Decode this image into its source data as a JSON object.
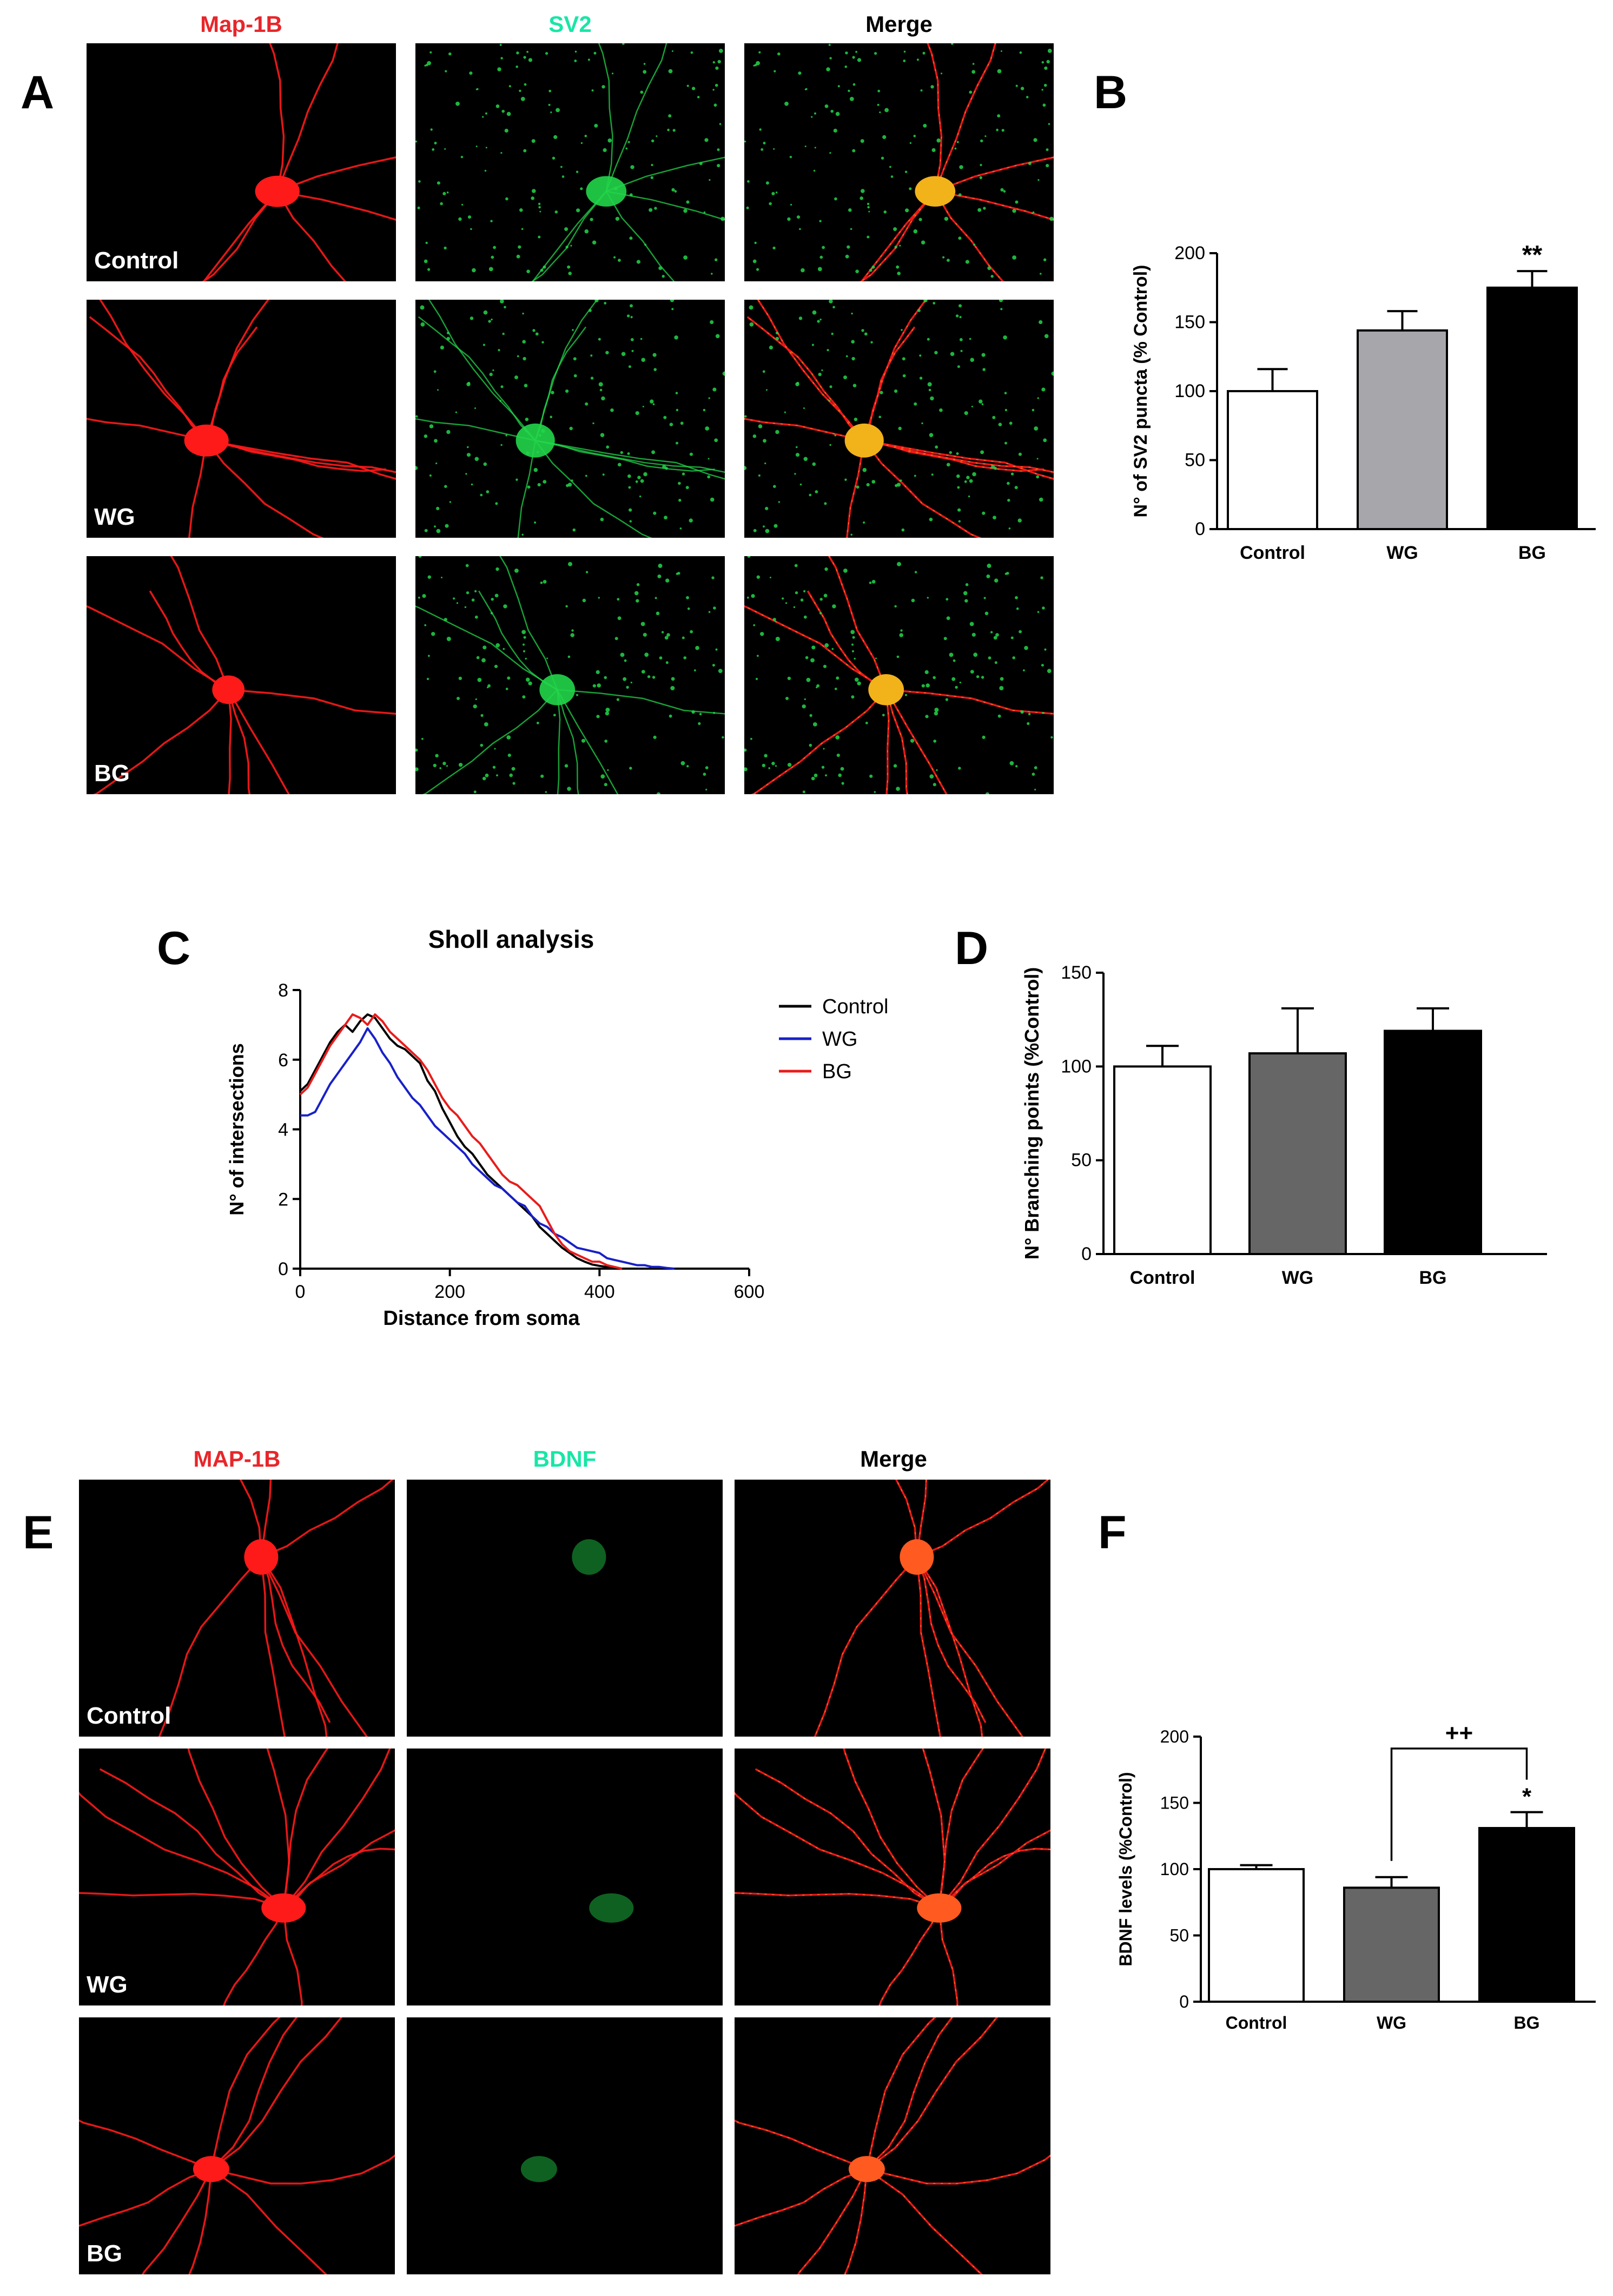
{
  "panel_letters": {
    "A": "A",
    "B": "B",
    "C": "C",
    "D": "D",
    "E": "E",
    "F": "F"
  },
  "panel_A": {
    "columns": [
      "Map-1B",
      "SV2",
      "Merge"
    ],
    "column_colors": [
      "#e8262a",
      "#18e6a6",
      "#000000"
    ],
    "rows": [
      "Control",
      "WG",
      "BG"
    ]
  },
  "panel_E": {
    "columns": [
      "MAP-1B",
      "BDNF",
      "Merge"
    ],
    "column_colors": [
      "#e8262a",
      "#18e6a6",
      "#000000"
    ],
    "rows": [
      "Control",
      "WG",
      "BG"
    ]
  },
  "chart_data": [
    {
      "panel": "B",
      "type": "bar",
      "categories": [
        "Control",
        "WG",
        "BG"
      ],
      "values": [
        100,
        144,
        175
      ],
      "errors": [
        16,
        14,
        12
      ],
      "bar_colors": [
        "#ffffff",
        "#a6a6ab",
        "#000000"
      ],
      "ylabel": "N° of SV2 puncta (% Control)",
      "xlabel": "",
      "ylim": [
        0,
        200
      ],
      "yticks": [
        0,
        50,
        100,
        150,
        200
      ],
      "annotations": [
        {
          "category": "BG",
          "text": "**"
        }
      ]
    },
    {
      "panel": "C",
      "type": "line",
      "title": "Sholl analysis",
      "xlabel": "Distance from soma",
      "ylabel": "N° of intersections",
      "xlim": [
        0,
        600
      ],
      "ylim": [
        0,
        8
      ],
      "xticks": [
        0,
        200,
        400,
        600
      ],
      "yticks": [
        0,
        2,
        4,
        6,
        8
      ],
      "legend_position": "top-right",
      "series": [
        {
          "name": "Control",
          "color": "#000000",
          "x": [
            0,
            10,
            20,
            30,
            40,
            50,
            60,
            70,
            80,
            90,
            100,
            110,
            120,
            130,
            140,
            150,
            160,
            170,
            180,
            190,
            200,
            210,
            220,
            230,
            240,
            250,
            260,
            270,
            280,
            290,
            300,
            310,
            320,
            330,
            340,
            350,
            360,
            370,
            380,
            390,
            400,
            410,
            420,
            430,
            440
          ],
          "y": [
            5.1,
            5.3,
            5.7,
            6.1,
            6.5,
            6.8,
            7.0,
            6.8,
            7.1,
            7.3,
            7.2,
            6.9,
            6.6,
            6.4,
            6.3,
            6.1,
            5.9,
            5.4,
            5.1,
            4.6,
            4.2,
            3.8,
            3.5,
            3.3,
            3.0,
            2.7,
            2.5,
            2.3,
            2.1,
            1.9,
            1.7,
            1.5,
            1.2,
            1.0,
            0.8,
            0.6,
            0.45,
            0.3,
            0.2,
            0.12,
            0.08,
            0.05,
            0.02,
            0.0,
            0.0
          ]
        },
        {
          "name": "WG",
          "color": "#1820c8",
          "x": [
            0,
            10,
            20,
            30,
            40,
            50,
            60,
            70,
            80,
            90,
            100,
            110,
            120,
            130,
            140,
            150,
            160,
            170,
            180,
            190,
            200,
            210,
            220,
            230,
            240,
            250,
            260,
            270,
            280,
            290,
            300,
            310,
            320,
            330,
            340,
            350,
            360,
            370,
            380,
            390,
            400,
            410,
            420,
            430,
            440,
            450,
            460,
            470,
            480,
            490,
            500
          ],
          "y": [
            4.4,
            4.4,
            4.5,
            4.9,
            5.3,
            5.6,
            5.9,
            6.2,
            6.5,
            6.9,
            6.6,
            6.2,
            5.9,
            5.5,
            5.2,
            4.9,
            4.7,
            4.4,
            4.1,
            3.9,
            3.7,
            3.5,
            3.3,
            3.0,
            2.8,
            2.6,
            2.4,
            2.3,
            2.1,
            1.9,
            1.8,
            1.5,
            1.3,
            1.2,
            1.0,
            0.9,
            0.75,
            0.6,
            0.55,
            0.5,
            0.45,
            0.3,
            0.25,
            0.2,
            0.15,
            0.1,
            0.1,
            0.05,
            0.05,
            0.02,
            0.0
          ]
        },
        {
          "name": "BG",
          "color": "#e81c1c",
          "x": [
            0,
            10,
            20,
            30,
            40,
            50,
            60,
            70,
            80,
            90,
            100,
            110,
            120,
            130,
            140,
            150,
            160,
            170,
            180,
            190,
            200,
            210,
            220,
            230,
            240,
            250,
            260,
            270,
            280,
            290,
            300,
            310,
            320,
            330,
            340,
            350,
            360,
            370,
            380,
            390,
            400,
            410,
            420,
            430
          ],
          "y": [
            5.0,
            5.2,
            5.6,
            6.0,
            6.4,
            6.7,
            7.0,
            7.3,
            7.2,
            7.0,
            7.3,
            7.1,
            6.8,
            6.6,
            6.4,
            6.2,
            6.0,
            5.7,
            5.3,
            4.9,
            4.6,
            4.4,
            4.1,
            3.8,
            3.6,
            3.3,
            3.0,
            2.7,
            2.5,
            2.4,
            2.2,
            2.0,
            1.8,
            1.4,
            1.0,
            0.7,
            0.5,
            0.4,
            0.3,
            0.2,
            0.2,
            0.1,
            0.05,
            0.0
          ]
        }
      ]
    },
    {
      "panel": "D",
      "type": "bar",
      "categories": [
        "Control",
        "WG",
        "BG"
      ],
      "values": [
        100,
        107,
        119
      ],
      "errors": [
        11,
        24,
        12
      ],
      "bar_colors": [
        "#ffffff",
        "#666666",
        "#000000"
      ],
      "ylabel": "N° Branching points (%Control)",
      "xlabel": "",
      "ylim": [
        0,
        150
      ],
      "yticks": [
        0,
        50,
        100,
        150
      ]
    },
    {
      "panel": "F",
      "type": "bar",
      "categories": [
        "Control",
        "WG",
        "BG"
      ],
      "values": [
        100,
        86,
        131
      ],
      "errors": [
        3,
        8,
        12
      ],
      "bar_colors": [
        "#ffffff",
        "#666666",
        "#000000"
      ],
      "ylabel": "BDNF levels (%Control)",
      "xlabel": "",
      "ylim": [
        0,
        200
      ],
      "yticks": [
        0,
        50,
        100,
        150,
        200
      ],
      "annotations": [
        {
          "category": "BG",
          "text": "*"
        }
      ],
      "bracket": {
        "from": "WG",
        "to": "BG",
        "text": "++"
      }
    }
  ]
}
